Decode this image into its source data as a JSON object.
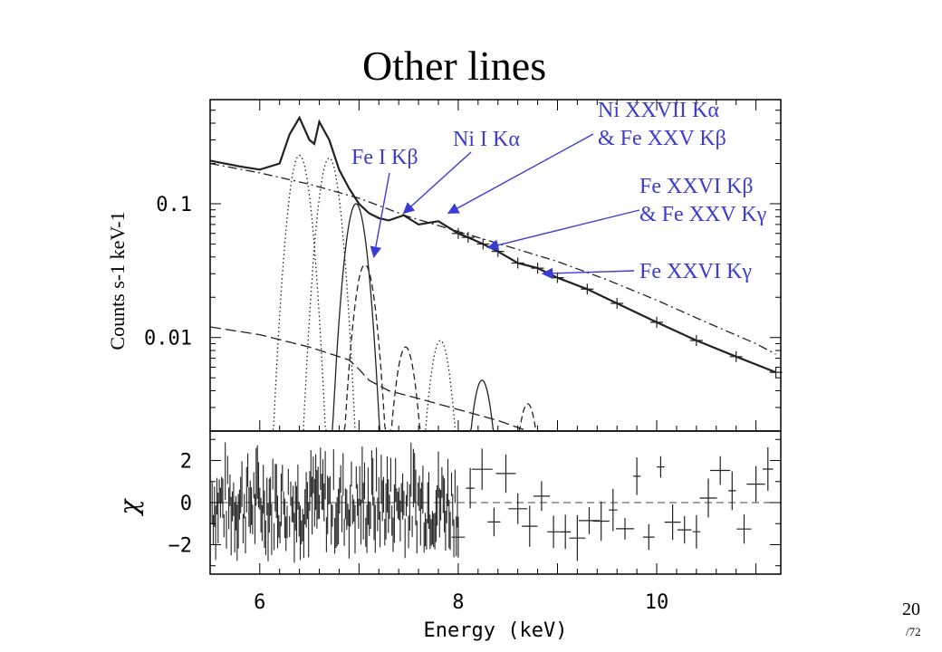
{
  "slide": {
    "title": "Other lines",
    "number": "20",
    "total": "/72"
  },
  "colors": {
    "annotation": "#3b3bd6",
    "data": "#000000"
  },
  "chart_data": {
    "type": "line",
    "panels": [
      {
        "name": "spectrum",
        "ylabel": "Counts s-1 keV-1",
        "yscale": "log",
        "ylim": [
          0.002,
          0.6
        ],
        "yticks": [
          {
            "value": 0.1,
            "label": "0.1"
          },
          {
            "value": 0.01,
            "label": "0.01"
          }
        ],
        "series": [
          {
            "style": "data",
            "x": [
              5.5,
              5.8,
              6.0,
              6.2,
              6.3,
              6.4,
              6.5,
              6.55,
              6.6,
              6.7,
              6.8,
              6.9,
              7.0,
              7.1,
              7.2,
              7.3,
              7.45,
              7.6,
              7.8,
              8.0,
              8.1,
              8.25,
              8.4,
              8.6,
              8.8,
              9.0,
              9.3,
              9.6,
              10.0,
              10.4,
              10.8,
              11.2
            ],
            "y": [
              0.21,
              0.19,
              0.18,
              0.2,
              0.33,
              0.44,
              0.3,
              0.28,
              0.41,
              0.3,
              0.18,
              0.13,
              0.1,
              0.085,
              0.078,
              0.075,
              0.082,
              0.07,
              0.074,
              0.06,
              0.056,
              0.05,
              0.044,
              0.036,
              0.033,
              0.028,
              0.023,
              0.018,
              0.013,
              0.0095,
              0.0072,
              0.0055
            ]
          },
          {
            "style": "continuum-dashdot",
            "x": [
              5.5,
              6.0,
              6.5,
              7.0,
              7.5,
              8.0,
              8.5,
              9.0,
              9.5,
              10.0,
              10.5,
              11.0,
              11.2
            ],
            "y": [
              0.2,
              0.17,
              0.14,
              0.11,
              0.08,
              0.062,
              0.048,
              0.037,
              0.027,
              0.019,
              0.013,
              0.009,
              0.0075
            ]
          },
          {
            "style": "lower-continuum-dashed",
            "x": [
              5.5,
              6.0,
              6.5,
              6.9,
              7.0,
              7.1,
              7.3,
              7.6,
              8.0,
              8.4,
              8.7
            ],
            "y": [
              0.012,
              0.0105,
              0.0085,
              0.0068,
              0.0058,
              0.0048,
              0.004,
              0.0035,
              0.0029,
              0.0024,
              0.002
            ]
          },
          {
            "style": "line-dotted",
            "center": 6.4,
            "peak": 0.23
          },
          {
            "style": "line-dotted",
            "center": 6.7,
            "peak": 0.22
          },
          {
            "style": "line-solid",
            "center": 6.97,
            "peak": 0.1
          },
          {
            "style": "line-dashed",
            "center": 7.06,
            "peak": 0.035
          },
          {
            "style": "line-dashed",
            "center": 7.47,
            "peak": 0.0085
          },
          {
            "style": "line-dotted",
            "center": 7.82,
            "peak": 0.0095
          },
          {
            "style": "line-solid",
            "center": 8.24,
            "peak": 0.0048
          },
          {
            "style": "line-dashed",
            "center": 8.7,
            "peak": 0.0032
          }
        ]
      },
      {
        "name": "residuals",
        "ylabel": "χ",
        "ylim": [
          -3.4,
          3.4
        ],
        "yticks": [
          {
            "value": 2,
            "label": "2"
          },
          {
            "value": 0,
            "label": "0"
          },
          {
            "value": -2,
            "label": "−2"
          }
        ]
      }
    ],
    "xlabel": "Energy (keV)",
    "xlim": [
      5.5,
      11.25
    ],
    "xticks": [
      {
        "value": 6,
        "label": "6"
      },
      {
        "value": 8,
        "label": "8"
      },
      {
        "value": 10,
        "label": "10"
      }
    ],
    "annotations": [
      {
        "lines": [
          "Fe I Kβ"
        ],
        "point": [
          7.15,
          0.04
        ]
      },
      {
        "lines": [
          "Ni I Kα"
        ],
        "point": [
          7.45,
          0.085
        ]
      },
      {
        "lines": [
          "Ni XXVII Kα",
          "& Fe XXV Kβ"
        ],
        "point": [
          7.9,
          0.085
        ]
      },
      {
        "lines": [
          "Fe XXVI Kβ",
          "& Fe XXV Kγ"
        ],
        "point": [
          8.3,
          0.047
        ]
      },
      {
        "lines": [
          "Fe XXVI Kγ"
        ],
        "point": [
          8.85,
          0.03
        ]
      }
    ]
  }
}
